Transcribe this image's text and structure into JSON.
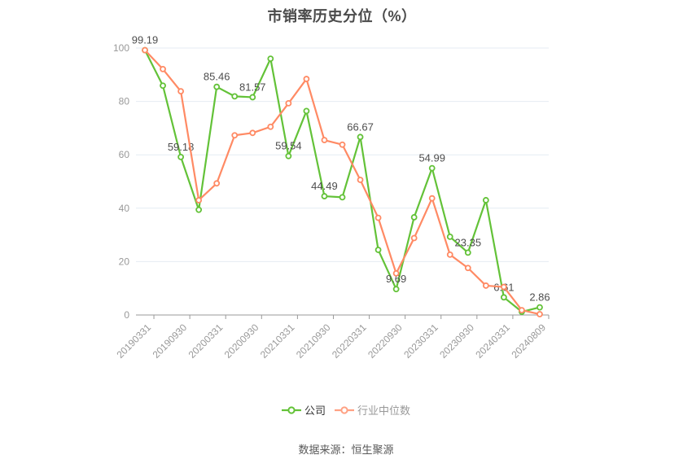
{
  "title": "市销率历史分位（%）",
  "source": "数据来源：恒生聚源",
  "legend": [
    {
      "label": "公司",
      "marker_color": "#63c238",
      "text_color": "#333333"
    },
    {
      "label": "行业中位数",
      "marker_color": "#ffa183",
      "text_color": "#999999"
    }
  ],
  "chart_data": {
    "type": "line",
    "title": "市销率历史分位（%）",
    "x": {
      "count": 23,
      "labels": [
        {
          "index": 0,
          "text": "20190331"
        },
        {
          "index": 2,
          "text": "20190930"
        },
        {
          "index": 4,
          "text": "20200331"
        },
        {
          "index": 6,
          "text": "20200930"
        },
        {
          "index": 8,
          "text": "20210331"
        },
        {
          "index": 10,
          "text": "20210930"
        },
        {
          "index": 12,
          "text": "20220331"
        },
        {
          "index": 14,
          "text": "20220930"
        },
        {
          "index": 16,
          "text": "20230331"
        },
        {
          "index": 18,
          "text": "20230930"
        },
        {
          "index": 20,
          "text": "20240331"
        },
        {
          "index": 22,
          "text": "20240809"
        }
      ]
    },
    "ylim": [
      0,
      100
    ],
    "y_ticks": [
      0,
      20,
      40,
      60,
      80,
      100
    ],
    "grid": true,
    "legend_position": "bottom",
    "series": [
      {
        "name": "公司",
        "color": "#63c238",
        "values": [
          99.19,
          85.9,
          59.18,
          39.4,
          85.46,
          81.9,
          81.57,
          96.0,
          59.54,
          76.4,
          44.49,
          44.1,
          66.67,
          24.4,
          9.69,
          36.6,
          54.99,
          29.3,
          23.35,
          43.0,
          6.61,
          1.2,
          2.86
        ],
        "point_labels": {
          "0": "99.19",
          "2": "59.18",
          "4": "85.46",
          "6": "81.57",
          "8": "59.54",
          "10": "44.49",
          "12": "66.67",
          "14": "9.69",
          "16": "54.99",
          "18": "23.35",
          "20": "6.61",
          "22": "2.86"
        }
      },
      {
        "name": "行业中位数",
        "color": "#ff8a64",
        "values": [
          99.19,
          92.1,
          83.8,
          43.0,
          49.3,
          67.3,
          68.2,
          70.5,
          79.3,
          88.4,
          65.5,
          63.8,
          50.6,
          36.4,
          15.6,
          28.8,
          43.7,
          22.6,
          17.6,
          11.0,
          10.5,
          1.8,
          0.3
        ],
        "point_labels": {}
      }
    ],
    "style": {
      "grid_color": "#e4ebf3",
      "axis_color": "#999999",
      "axis_label_color": "#999999",
      "point_label_color": "#4d4d4d"
    }
  }
}
